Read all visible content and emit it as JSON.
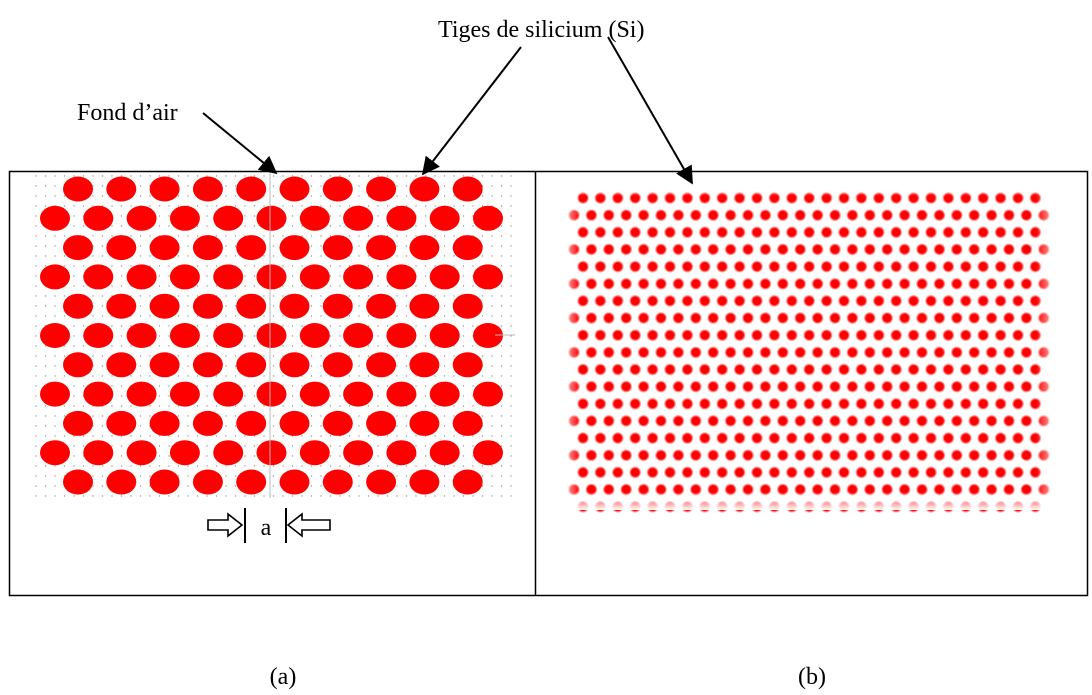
{
  "labels": {
    "top_label": "Tiges de silicium (Si)",
    "left_label": "Fond d’air",
    "lattice_const": "a",
    "caption_a": "(a)",
    "caption_b": "(b)"
  },
  "colors": {
    "rod": "#ff0000",
    "rod_soft": "#ff5a5a",
    "border": "#000000",
    "grid_dot": "#9a9a9a"
  },
  "panels": {
    "a": {
      "rows": 11,
      "rods_per_row_even": 10,
      "rods_per_row_odd": 11,
      "lattice": "triangular"
    },
    "b": {
      "rows": 19,
      "rods_per_row_even": 27,
      "rods_per_row_odd": 28,
      "lattice": "triangular"
    }
  }
}
